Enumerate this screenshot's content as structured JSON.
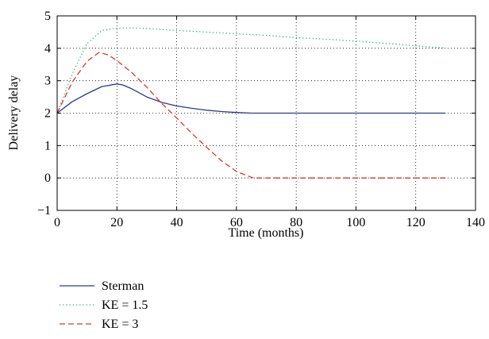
{
  "chart_data": {
    "type": "line",
    "title": "",
    "xlabel": "Time (months)",
    "ylabel": "Delivery delay",
    "xlim": [
      0,
      140
    ],
    "ylim": [
      -1,
      5
    ],
    "xticks": [
      0,
      20,
      40,
      60,
      80,
      100,
      120,
      140
    ],
    "yticks": [
      -1,
      0,
      1,
      2,
      3,
      4,
      5
    ],
    "xtick_labels": [
      "0",
      "20",
      "40",
      "60",
      "80",
      "100",
      "120",
      "140"
    ],
    "ytick_labels": [
      "−1",
      "0",
      "1",
      "2",
      "3",
      "4",
      "5"
    ],
    "grid": true,
    "legend_position": "below",
    "series": [
      {
        "name": "Sterman",
        "color": "#2b3a8f",
        "style": "solid",
        "x": [
          0,
          5,
          10,
          15,
          20,
          22,
          25,
          30,
          35,
          40,
          45,
          50,
          55,
          60,
          65,
          70,
          80,
          90,
          100,
          110,
          120,
          130
        ],
        "y": [
          2.0,
          2.35,
          2.6,
          2.82,
          2.9,
          2.87,
          2.75,
          2.5,
          2.33,
          2.22,
          2.15,
          2.09,
          2.05,
          2.02,
          2.0,
          2.0,
          2.0,
          2.0,
          2.0,
          2.0,
          2.0,
          2.0
        ]
      },
      {
        "name": "KE = 1.5",
        "color": "#2aa58a",
        "style": "dotted",
        "x": [
          0,
          5,
          10,
          15,
          20,
          25,
          30,
          40,
          50,
          60,
          70,
          80,
          90,
          100,
          110,
          120,
          130
        ],
        "y": [
          2.0,
          3.2,
          4.15,
          4.55,
          4.62,
          4.63,
          4.61,
          4.55,
          4.5,
          4.45,
          4.4,
          4.33,
          4.28,
          4.22,
          4.15,
          4.08,
          4.0
        ]
      },
      {
        "name": "KE = 3",
        "color": "#d9372b",
        "style": "dashed",
        "x": [
          0,
          5,
          10,
          14,
          17,
          20,
          25,
          30,
          35,
          40,
          45,
          50,
          55,
          60,
          65,
          66,
          70,
          80,
          90,
          100,
          110,
          120,
          130
        ],
        "y": [
          2.0,
          2.95,
          3.6,
          3.87,
          3.8,
          3.62,
          3.25,
          2.8,
          2.3,
          1.85,
          1.38,
          0.95,
          0.53,
          0.2,
          0.02,
          0.0,
          0.0,
          0.0,
          0.0,
          0.0,
          0.0,
          0.0,
          0.0
        ]
      }
    ]
  }
}
